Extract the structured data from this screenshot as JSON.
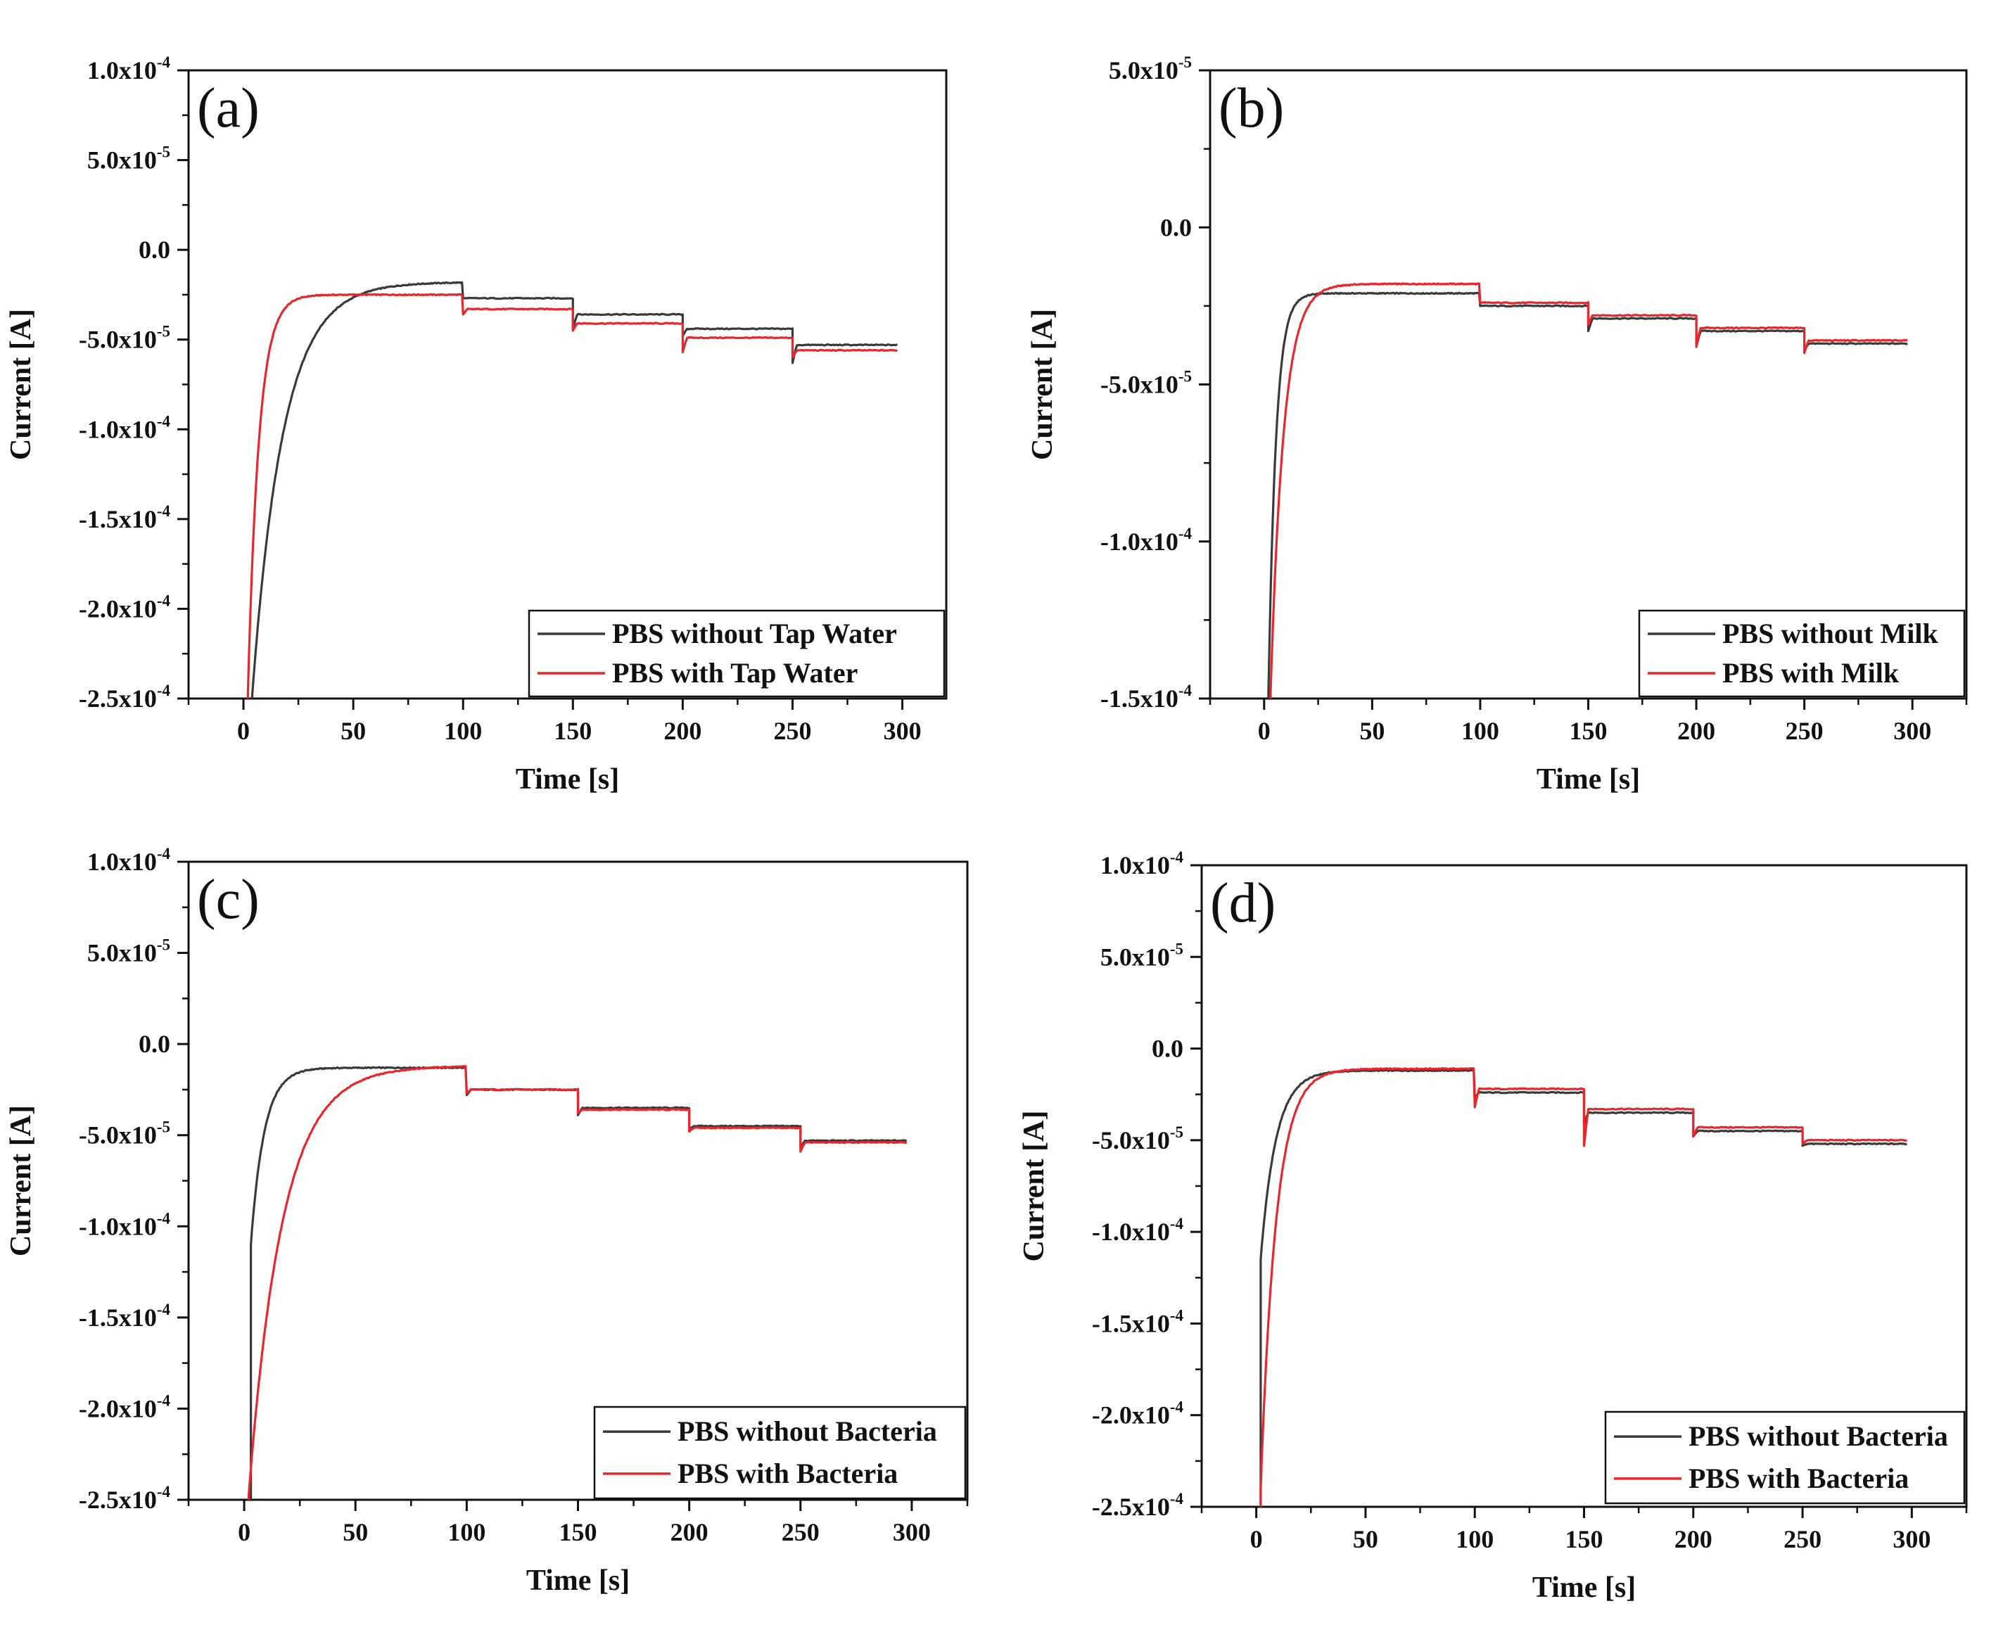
{
  "colors": {
    "without": "#3a3a3a",
    "with": "#e8262b",
    "axis": "#111111"
  },
  "chart_data": [
    {
      "id": "a",
      "panel_label": "(a)",
      "type": "line",
      "xlabel": "Time [s]",
      "ylabel": "Current [A]",
      "xlim": [
        -25,
        320
      ],
      "ylim": [
        -0.00025,
        0.0001
      ],
      "xticks": [
        {
          "value": 0,
          "label": "0"
        },
        {
          "value": 50,
          "label": "50"
        },
        {
          "value": 100,
          "label": "100"
        },
        {
          "value": 150,
          "label": "150"
        },
        {
          "value": 200,
          "label": "200"
        },
        {
          "value": 250,
          "label": "250"
        },
        {
          "value": 300,
          "label": "300"
        }
      ],
      "yticks": [
        {
          "value": 0.0001,
          "label": "1.0x10",
          "exp": "-4"
        },
        {
          "value": 5e-05,
          "label": "5.0x10",
          "exp": "-5"
        },
        {
          "value": 0,
          "label": "0.0",
          "exp": ""
        },
        {
          "value": -5e-05,
          "label": "-5.0x10",
          "exp": "-5"
        },
        {
          "value": -0.0001,
          "label": "-1.0x10",
          "exp": "-4"
        },
        {
          "value": -0.00015,
          "label": "-1.5x10",
          "exp": "-4"
        },
        {
          "value": -0.0002,
          "label": "-2.0x10",
          "exp": "-4"
        },
        {
          "value": -0.00025,
          "label": "-2.5x10",
          "exp": "-4"
        }
      ],
      "legend": {
        "position": "bottom-right"
      },
      "series": [
        {
          "key": "without",
          "name": "PBS without Tap Water",
          "start_time": 4,
          "start_value": -0.000248,
          "tau": 14,
          "segments": [
            {
              "t0": 4,
              "t1": 100,
              "base": -1.8e-05,
              "spike": 0
            },
            {
              "t0": 100,
              "t1": 150,
              "base": -2.7e-05,
              "spike": 0
            },
            {
              "t0": 150,
              "t1": 200,
              "base": -3.6e-05,
              "spike": -4.4e-05
            },
            {
              "t0": 200,
              "t1": 250,
              "base": -4.4e-05,
              "spike": -4.8e-05
            },
            {
              "t0": 250,
              "t1": 298,
              "base": -5.3e-05,
              "spike": -6.3e-05
            }
          ]
        },
        {
          "key": "with",
          "name": "PBS with Tap Water",
          "start_time": 2,
          "start_value": -0.000248,
          "tau": 5,
          "segments": [
            {
              "t0": 2,
              "t1": 100,
              "base": -2.5e-05,
              "spike": 0
            },
            {
              "t0": 100,
              "t1": 150,
              "base": -3.3e-05,
              "spike": -3.6e-05
            },
            {
              "t0": 150,
              "t1": 200,
              "base": -4.1e-05,
              "spike": -4.5e-05
            },
            {
              "t0": 200,
              "t1": 250,
              "base": -4.9e-05,
              "spike": -5.7e-05
            },
            {
              "t0": 250,
              "t1": 298,
              "base": -5.6e-05,
              "spike": -6e-05
            }
          ]
        }
      ]
    },
    {
      "id": "b",
      "panel_label": "(b)",
      "type": "line",
      "xlabel": "Time [s]",
      "ylabel": "Current [A]",
      "xlim": [
        -25,
        325
      ],
      "ylim": [
        -0.00015,
        5e-05
      ],
      "xticks": [
        {
          "value": 0,
          "label": "0"
        },
        {
          "value": 50,
          "label": "50"
        },
        {
          "value": 100,
          "label": "100"
        },
        {
          "value": 150,
          "label": "150"
        },
        {
          "value": 200,
          "label": "200"
        },
        {
          "value": 250,
          "label": "250"
        },
        {
          "value": 300,
          "label": "300"
        }
      ],
      "yticks": [
        {
          "value": 5e-05,
          "label": "5.0x10",
          "exp": "-5"
        },
        {
          "value": 0,
          "label": "0.0",
          "exp": ""
        },
        {
          "value": -5e-05,
          "label": "-5.0x10",
          "exp": "-5"
        },
        {
          "value": -0.0001,
          "label": "-1.0x10",
          "exp": "-4"
        },
        {
          "value": -0.00015,
          "label": "-1.5x10",
          "exp": "-4"
        }
      ],
      "legend": {
        "position": "bottom-right"
      },
      "series": [
        {
          "key": "without",
          "name": "PBS without Milk",
          "start_time": 2,
          "start_value": -0.000148,
          "tau": 3.5,
          "segments": [
            {
              "t0": 2,
              "t1": 100,
              "base": -2.1e-05,
              "spike": 0
            },
            {
              "t0": 100,
              "t1": 150,
              "base": -2.5e-05,
              "spike": 0
            },
            {
              "t0": 150,
              "t1": 200,
              "base": -2.9e-05,
              "spike": -3.3e-05
            },
            {
              "t0": 200,
              "t1": 250,
              "base": -3.3e-05,
              "spike": -3.8e-05
            },
            {
              "t0": 250,
              "t1": 298,
              "base": -3.7e-05,
              "spike": -3.9e-05
            }
          ]
        },
        {
          "key": "with",
          "name": "PBS with Milk",
          "start_time": 3,
          "start_value": -0.000148,
          "tau": 6,
          "segments": [
            {
              "t0": 3,
              "t1": 100,
              "base": -1.8e-05,
              "spike": 0
            },
            {
              "t0": 100,
              "t1": 150,
              "base": -2.4e-05,
              "spike": 0
            },
            {
              "t0": 150,
              "t1": 200,
              "base": -2.8e-05,
              "spike": -3.1e-05
            },
            {
              "t0": 200,
              "t1": 250,
              "base": -3.2e-05,
              "spike": -3.8e-05
            },
            {
              "t0": 250,
              "t1": 298,
              "base": -3.6e-05,
              "spike": -4e-05
            }
          ]
        }
      ]
    },
    {
      "id": "c",
      "panel_label": "(c)",
      "type": "line",
      "xlabel": "Time [s]",
      "ylabel": "Current [A]",
      "xlim": [
        -25,
        325
      ],
      "ylim": [
        -0.00025,
        0.0001
      ],
      "xticks": [
        {
          "value": 0,
          "label": "0"
        },
        {
          "value": 50,
          "label": "50"
        },
        {
          "value": 100,
          "label": "100"
        },
        {
          "value": 150,
          "label": "150"
        },
        {
          "value": 200,
          "label": "200"
        },
        {
          "value": 250,
          "label": "250"
        },
        {
          "value": 300,
          "label": "300"
        }
      ],
      "yticks": [
        {
          "value": 0.0001,
          "label": "1.0x10",
          "exp": "-4"
        },
        {
          "value": 5e-05,
          "label": "5.0x10",
          "exp": "-5"
        },
        {
          "value": 0,
          "label": "0.0",
          "exp": ""
        },
        {
          "value": -5e-05,
          "label": "-5.0x10",
          "exp": "-5"
        },
        {
          "value": -0.0001,
          "label": "-1.0x10",
          "exp": "-4"
        },
        {
          "value": -0.00015,
          "label": "-1.5x10",
          "exp": "-4"
        },
        {
          "value": -0.0002,
          "label": "-2.0x10",
          "exp": "-4"
        },
        {
          "value": -0.00025,
          "label": "-2.5x10",
          "exp": "-4"
        }
      ],
      "legend": {
        "position": "bottom-right"
      },
      "series": [
        {
          "key": "without",
          "name": "PBS without Bacteria",
          "start_time": 3,
          "start_value": -0.00011,
          "tau": 6,
          "segments": [
            {
              "t0": 3,
              "t1": 100,
              "base": -1.3e-05,
              "spike": 0
            },
            {
              "t0": 100,
              "t1": 150,
              "base": -2.5e-05,
              "spike": -2.8e-05
            },
            {
              "t0": 150,
              "t1": 200,
              "base": -3.5e-05,
              "spike": -3.9e-05
            },
            {
              "t0": 200,
              "t1": 250,
              "base": -4.5e-05,
              "spike": -4.7e-05
            },
            {
              "t0": 250,
              "t1": 298,
              "base": -5.3e-05,
              "spike": -5.7e-05
            }
          ]
        },
        {
          "key": "with",
          "name": "PBS with Bacteria",
          "start_time": 2,
          "start_value": -0.000248,
          "tau": 15,
          "segments": [
            {
              "t0": 2,
              "t1": 100,
              "base": -1.2e-05,
              "spike": 0
            },
            {
              "t0": 100,
              "t1": 150,
              "base": -2.5e-05,
              "spike": -2.7e-05
            },
            {
              "t0": 150,
              "t1": 200,
              "base": -3.6e-05,
              "spike": -3.8e-05
            },
            {
              "t0": 200,
              "t1": 250,
              "base": -4.6e-05,
              "spike": -4.8e-05
            },
            {
              "t0": 250,
              "t1": 298,
              "base": -5.4e-05,
              "spike": -5.9e-05
            }
          ]
        }
      ]
    },
    {
      "id": "d",
      "panel_label": "(d)",
      "type": "line",
      "xlabel": "Time [s]",
      "ylabel": "Current [A]",
      "xlim": [
        -25,
        325
      ],
      "ylim": [
        -0.00025,
        0.0001
      ],
      "xticks": [
        {
          "value": 0,
          "label": "0"
        },
        {
          "value": 50,
          "label": "50"
        },
        {
          "value": 100,
          "label": "100"
        },
        {
          "value": 150,
          "label": "150"
        },
        {
          "value": 200,
          "label": "200"
        },
        {
          "value": 250,
          "label": "250"
        },
        {
          "value": 300,
          "label": "300"
        }
      ],
      "yticks": [
        {
          "value": 0.0001,
          "label": "1.0x10",
          "exp": "-4"
        },
        {
          "value": 5e-05,
          "label": "5.0x10",
          "exp": "-5"
        },
        {
          "value": 0,
          "label": "0.0",
          "exp": ""
        },
        {
          "value": -5e-05,
          "label": "-5.0x10",
          "exp": "-5"
        },
        {
          "value": -0.0001,
          "label": "-1.0x10",
          "exp": "-4"
        },
        {
          "value": -0.00015,
          "label": "-1.5x10",
          "exp": "-4"
        },
        {
          "value": -0.0002,
          "label": "-2.0x10",
          "exp": "-4"
        },
        {
          "value": -0.00025,
          "label": "-2.5x10",
          "exp": "-4"
        }
      ],
      "legend": {
        "position": "bottom-right"
      },
      "series": [
        {
          "key": "without",
          "name": "PBS without Bacteria",
          "start_time": 2,
          "start_value": -0.000115,
          "tau": 7,
          "segments": [
            {
              "t0": 2,
              "t1": 100,
              "base": -1.2e-05,
              "spike": 0
            },
            {
              "t0": 100,
              "t1": 150,
              "base": -2.4e-05,
              "spike": -2.7e-05
            },
            {
              "t0": 150,
              "t1": 200,
              "base": -3.5e-05,
              "spike": -4.1e-05
            },
            {
              "t0": 200,
              "t1": 250,
              "base": -4.5e-05,
              "spike": -4.8e-05
            },
            {
              "t0": 250,
              "t1": 298,
              "base": -5.2e-05,
              "spike": -5.3e-05
            }
          ]
        },
        {
          "key": "with",
          "name": "PBS with Bacteria",
          "start_time": 2,
          "start_value": -0.00024,
          "tau": 7,
          "segments": [
            {
              "t0": 2,
              "t1": 100,
              "base": -1.1e-05,
              "spike": 0
            },
            {
              "t0": 100,
              "t1": 150,
              "base": -2.2e-05,
              "spike": -3.2e-05
            },
            {
              "t0": 150,
              "t1": 200,
              "base": -3.3e-05,
              "spike": -5.3e-05
            },
            {
              "t0": 200,
              "t1": 250,
              "base": -4.3e-05,
              "spike": -4.8e-05
            },
            {
              "t0": 250,
              "t1": 298,
              "base": -5e-05,
              "spike": -5.2e-05
            }
          ]
        }
      ]
    }
  ]
}
